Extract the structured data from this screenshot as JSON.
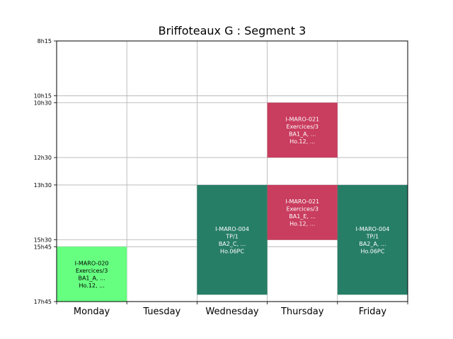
{
  "chart_data": {
    "type": "timetable",
    "title": "Briffoteaux G : Segment 3",
    "days": [
      "Monday",
      "Tuesday",
      "Wednesday",
      "Thursday",
      "Friday"
    ],
    "y_ticks": [
      "8h15",
      "10h15",
      "10h30",
      "12h30",
      "13h30",
      "15h30",
      "15h45",
      "17h45"
    ],
    "ylim": [
      "8h15",
      "17h45"
    ],
    "grid": true,
    "events": [
      {
        "day": "Monday",
        "start": "15h45",
        "end": "17h45",
        "color": "#66ff80",
        "text_color": "#000000",
        "lines": [
          "I-MARO-020",
          "Exercices/3",
          "BA1_A, ...",
          "Ho.12, ..."
        ]
      },
      {
        "day": "Wednesday",
        "start": "13h30",
        "end": "17h30",
        "color": "#277e66",
        "text_color": "#ffffff",
        "lines": [
          "I-MARO-004",
          "TP/1",
          "BA2_C, ...",
          "Ho.06PC"
        ]
      },
      {
        "day": "Thursday",
        "start": "10h30",
        "end": "12h30",
        "color": "#c93d5f",
        "text_color": "#ffffff",
        "lines": [
          "I-MARO-021",
          "Exercices/3",
          "BA1_A, ...",
          "Ho.12, ..."
        ]
      },
      {
        "day": "Thursday",
        "start": "13h30",
        "end": "15h30",
        "color": "#c93d5f",
        "text_color": "#ffffff",
        "lines": [
          "I-MARO-021",
          "Exercices/3",
          "BA1_E, ...",
          "Ho.12, ..."
        ]
      },
      {
        "day": "Friday",
        "start": "13h30",
        "end": "17h30",
        "color": "#277e66",
        "text_color": "#ffffff",
        "lines": [
          "I-MARO-004",
          "TP/1",
          "BA2_A, ...",
          "Ho.06PC"
        ]
      }
    ]
  }
}
